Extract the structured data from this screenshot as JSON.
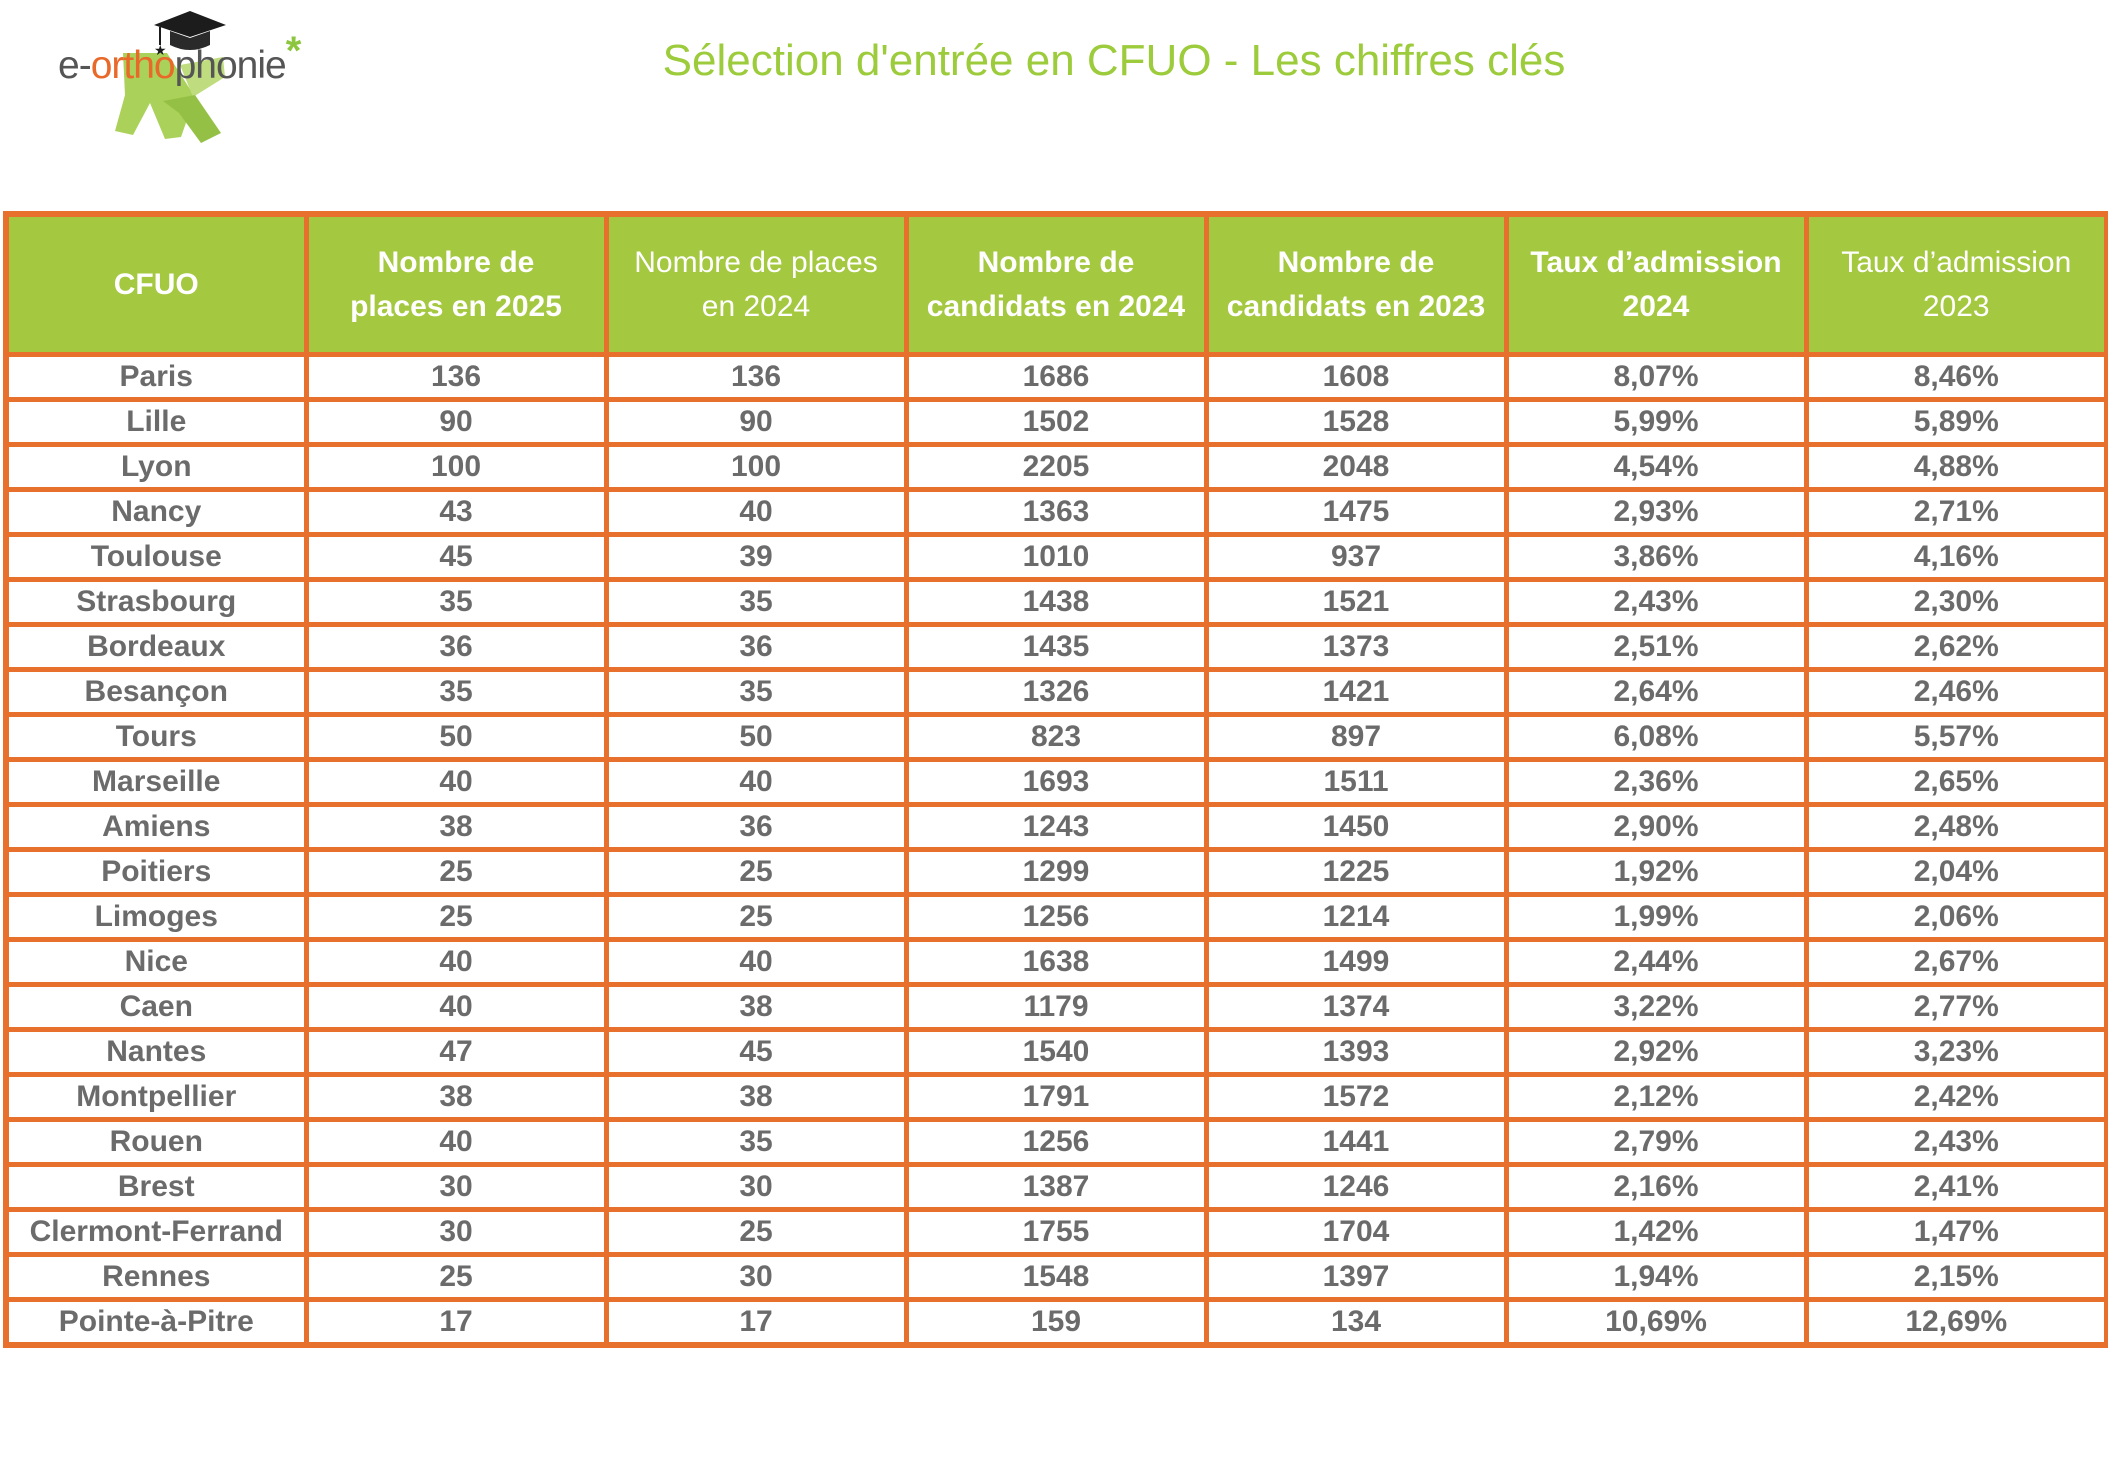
{
  "logo": {
    "prefix": "e-",
    "accent": "ortho",
    "suffix": "phonie",
    "star": "*",
    "icons": [
      "graduation-cap-icon",
      "green-asterisk-icon"
    ],
    "colors": {
      "text": "#555555",
      "accent": "#e8692a",
      "green": "#8cc63f"
    }
  },
  "title": "Sélection d'entrée en CFUO - Les chiffres clés",
  "colors": {
    "title": "#9ccb3b",
    "header_bg": "#a4c83f",
    "border": "#e8702d",
    "cell_text": "#6b6b6b"
  },
  "table": {
    "headers": [
      "CFUO",
      "Nombre de places en 2025",
      "Nombre de places en 2024",
      "Nombre de candidats en 2024",
      "Nombre de candidats en 2023",
      "Taux d’admission 2024",
      "Taux d’admission 2023"
    ],
    "rows": [
      [
        "Paris",
        "136",
        "136",
        "1686",
        "1608",
        "8,07%",
        "8,46%"
      ],
      [
        "Lille",
        "90",
        "90",
        "1502",
        "1528",
        "5,99%",
        "5,89%"
      ],
      [
        "Lyon",
        "100",
        "100",
        "2205",
        "2048",
        "4,54%",
        "4,88%"
      ],
      [
        "Nancy",
        "43",
        "40",
        "1363",
        "1475",
        "2,93%",
        "2,71%"
      ],
      [
        "Toulouse",
        "45",
        "39",
        "1010",
        "937",
        "3,86%",
        "4,16%"
      ],
      [
        "Strasbourg",
        "35",
        "35",
        "1438",
        "1521",
        "2,43%",
        "2,30%"
      ],
      [
        "Bordeaux",
        "36",
        "36",
        "1435",
        "1373",
        "2,51%",
        "2,62%"
      ],
      [
        "Besançon",
        "35",
        "35",
        "1326",
        "1421",
        "2,64%",
        "2,46%"
      ],
      [
        "Tours",
        "50",
        "50",
        "823",
        "897",
        "6,08%",
        "5,57%"
      ],
      [
        "Marseille",
        "40",
        "40",
        "1693",
        "1511",
        "2,36%",
        "2,65%"
      ],
      [
        "Amiens",
        "38",
        "36",
        "1243",
        "1450",
        "2,90%",
        "2,48%"
      ],
      [
        "Poitiers",
        "25",
        "25",
        "1299",
        "1225",
        "1,92%",
        "2,04%"
      ],
      [
        "Limoges",
        "25",
        "25",
        "1256",
        "1214",
        "1,99%",
        "2,06%"
      ],
      [
        "Nice",
        "40",
        "40",
        "1638",
        "1499",
        "2,44%",
        "2,67%"
      ],
      [
        "Caen",
        "40",
        "38",
        "1179",
        "1374",
        "3,22%",
        "2,77%"
      ],
      [
        "Nantes",
        "47",
        "45",
        "1540",
        "1393",
        "2,92%",
        "3,23%"
      ],
      [
        "Montpellier",
        "38",
        "38",
        "1791",
        "1572",
        "2,12%",
        "2,42%"
      ],
      [
        "Rouen",
        "40",
        "35",
        "1256",
        "1441",
        "2,79%",
        "2,43%"
      ],
      [
        "Brest",
        "30",
        "30",
        "1387",
        "1246",
        "2,16%",
        "2,41%"
      ],
      [
        "Clermont-Ferrand",
        "30",
        "25",
        "1755",
        "1704",
        "1,42%",
        "1,47%"
      ],
      [
        "Rennes",
        "25",
        "30",
        "1548",
        "1397",
        "1,94%",
        "2,15%"
      ],
      [
        "Pointe-à-Pitre",
        "17",
        "17",
        "159",
        "134",
        "10,69%",
        "12,69%"
      ]
    ]
  }
}
